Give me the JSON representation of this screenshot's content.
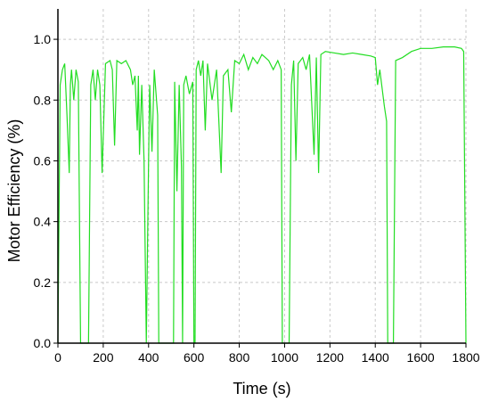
{
  "chart_data": {
    "type": "line",
    "xlabel": "Time (s)",
    "ylabel": "Motor Efficiency (%)",
    "xlim": [
      0,
      1800
    ],
    "ylim": [
      0,
      1.1
    ],
    "xticks": [
      0,
      200,
      400,
      600,
      800,
      1000,
      1200,
      1400,
      1600,
      1800
    ],
    "yticks": [
      {
        "value": 0,
        "label": "0.0"
      },
      0.2,
      0.4,
      0.6,
      0.8,
      {
        "value": 1,
        "label": "1.0"
      }
    ],
    "grid": true,
    "series": [
      {
        "name": "Motor Efficiency",
        "color": "#22dd22",
        "x": [
          0,
          10,
          20,
          30,
          40,
          50,
          55,
          60,
          70,
          80,
          90,
          100,
          135,
          145,
          155,
          165,
          175,
          185,
          195,
          210,
          230,
          240,
          250,
          260,
          280,
          300,
          320,
          330,
          340,
          350,
          355,
          360,
          370,
          380,
          390,
          400,
          405,
          415,
          425,
          440,
          445,
          460,
          510,
          515,
          525,
          535,
          545,
          550,
          555,
          565,
          580,
          595,
          600,
          605,
          610,
          620,
          630,
          640,
          650,
          660,
          680,
          700,
          720,
          730,
          750,
          765,
          780,
          800,
          820,
          840,
          860,
          880,
          900,
          930,
          950,
          970,
          985,
          990,
          1020,
          1030,
          1040,
          1050,
          1060,
          1080,
          1095,
          1110,
          1130,
          1140,
          1150,
          1160,
          1180,
          1220,
          1260,
          1300,
          1340,
          1380,
          1400,
          1410,
          1420,
          1440,
          1450,
          1455,
          1480,
          1490,
          1520,
          1560,
          1600,
          1650,
          1700,
          1750,
          1780,
          1790,
          1800
        ],
        "values": [
          0,
          0.85,
          0.9,
          0.92,
          0.75,
          0.56,
          0.85,
          0.9,
          0.8,
          0.9,
          0.86,
          0,
          0,
          0.85,
          0.9,
          0.8,
          0.9,
          0.85,
          0.56,
          0.92,
          0.93,
          0.9,
          0.65,
          0.93,
          0.92,
          0.93,
          0.9,
          0.85,
          0.88,
          0.7,
          0.88,
          0.62,
          0.85,
          0.6,
          0,
          0.6,
          0.85,
          0.63,
          0.9,
          0.75,
          0,
          0,
          0,
          0.86,
          0.5,
          0.85,
          0.58,
          0,
          0.85,
          0.88,
          0.82,
          0.86,
          0,
          0,
          0.9,
          0.93,
          0.88,
          0.93,
          0.7,
          0.92,
          0.8,
          0.9,
          0.56,
          0.88,
          0.9,
          0.76,
          0.93,
          0.92,
          0.95,
          0.9,
          0.94,
          0.92,
          0.95,
          0.93,
          0.9,
          0.93,
          0.9,
          0,
          0,
          0.85,
          0.93,
          0.6,
          0.92,
          0.94,
          0.9,
          0.95,
          0.62,
          0.94,
          0.56,
          0.95,
          0.96,
          0.955,
          0.95,
          0.955,
          0.95,
          0.945,
          0.94,
          0.85,
          0.9,
          0.78,
          0.73,
          0,
          0,
          0.93,
          0.94,
          0.96,
          0.97,
          0.97,
          0.975,
          0.975,
          0.97,
          0.96,
          0
        ]
      }
    ]
  }
}
